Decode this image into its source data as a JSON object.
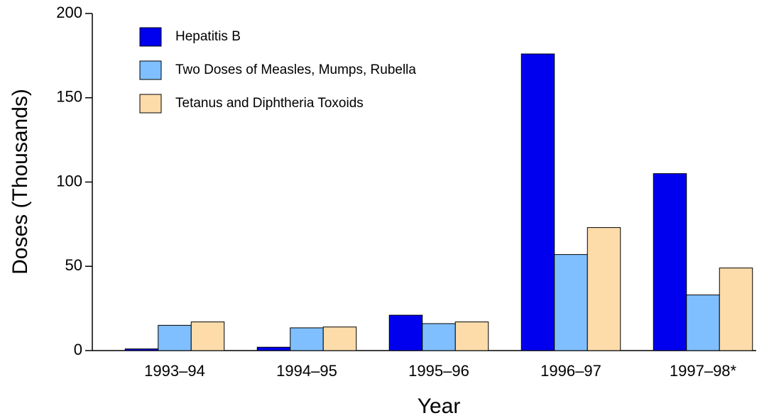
{
  "chart_data": {
    "type": "bar",
    "x_label": "Year",
    "y_label": "Doses (Thousands)",
    "categories": [
      "1993–94",
      "1994–95",
      "1995–96",
      "1996–97",
      "1997–98*"
    ],
    "series": [
      {
        "name": "Hepatitis B",
        "color": "#0000ee",
        "values": [
          1,
          2,
          21,
          176,
          105
        ]
      },
      {
        "name": "Two Doses of Measles, Mumps, Rubella",
        "color": "#80bfff",
        "values": [
          15,
          13.5,
          16,
          57,
          33
        ]
      },
      {
        "name": "Tetanus and Diphtheria Toxoids",
        "color": "#fddcaa",
        "values": [
          17,
          14,
          17,
          73,
          49
        ]
      }
    ],
    "ylim": [
      0,
      200
    ],
    "yticks": [
      0,
      50,
      100,
      150,
      200
    ],
    "grid": false,
    "legend": "top-left"
  }
}
